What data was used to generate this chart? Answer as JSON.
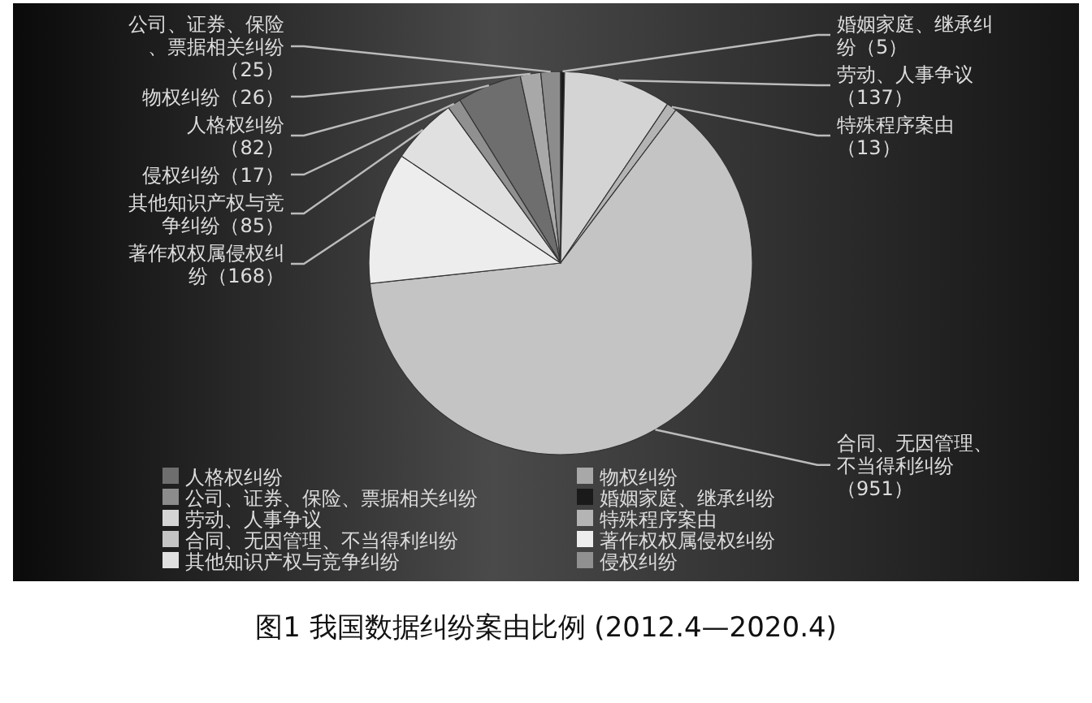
{
  "chart_data": {
    "type": "pie",
    "title": "图1  我国数据纠纷案由比例 (2012.4—2020.4)",
    "categories": [
      "人格权纠纷",
      "物权纠纷",
      "公司、证券、保险、票据相关纠纷",
      "婚姻家庭、继承纠纷",
      "劳动、人事争议",
      "特殊程序案由",
      "合同、无因管理、不当得利纠纷",
      "著作权权属侵权纠纷",
      "其他知识产权与竞争纠纷",
      "侵权纠纷"
    ],
    "values": [
      82,
      26,
      25,
      5,
      137,
      13,
      951,
      168,
      85,
      17
    ],
    "colors": [
      "#6e6e6e",
      "#a8a8a8",
      "#8c8c8c",
      "#1a1a1a",
      "#d4d4d4",
      "#b4b4b4",
      "#c4c4c4",
      "#ededed",
      "#e0e0e0",
      "#909090"
    ],
    "value_labels": [
      "人格权纠纷（82）",
      "物权纠纷（26）",
      "公司、证券、保险、票据相关纠纷（25）",
      "婚姻家庭、继承纠纷（5）",
      "劳动、人事争议（137）",
      "特殊程序案由（13）",
      "合同、无因管理、不当得利纠纷（951）",
      "著作权权属侵权纠纷（168）",
      "其他知识产权与竞争纠纷（85）",
      "侵权纠纷（17）"
    ],
    "legend": "bottom"
  }
}
